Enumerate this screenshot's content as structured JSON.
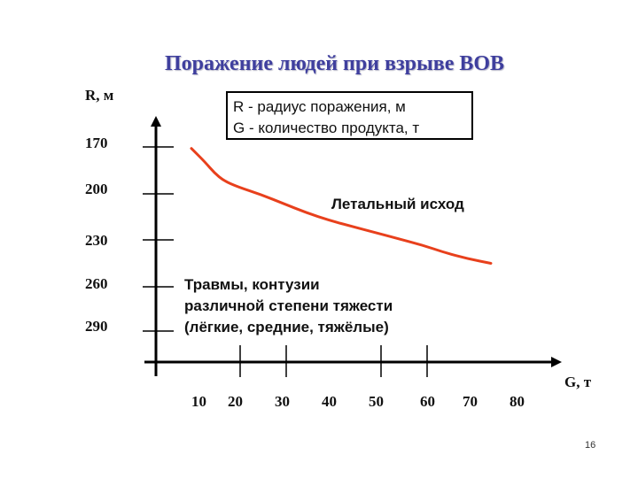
{
  "title": "Поражение людей при взрыве ВОВ",
  "page_number": "16",
  "colors": {
    "title": "#3f3f9e",
    "curve": "#e8401c",
    "axes": "#000000"
  },
  "chart_data": {
    "type": "line",
    "xlabel": "G, т",
    "ylabel": "R, м",
    "x_ticks": [
      "10",
      "20",
      "30",
      "40",
      "50",
      "60",
      "70",
      "80"
    ],
    "y_ticks": [
      "170",
      "200",
      "230",
      "260",
      "290"
    ],
    "legend": [
      "R - радиус поражения, м",
      "G - количество продукта, т"
    ],
    "annotations": {
      "lethal": "Летальный исход",
      "injury": [
        "Травмы, контузии",
        "различной степени тяжести",
        "(лёгкие, средние, тяжёлые)"
      ]
    },
    "grid": false,
    "series": [
      {
        "color": "#e8401c",
        "x": [
          10,
          13,
          15,
          17,
          20,
          25,
          30,
          35,
          40,
          45,
          50,
          55,
          60,
          65,
          70,
          75
        ],
        "y": [
          171,
          180,
          187,
          192,
          196,
          201,
          207,
          213,
          218,
          222,
          226,
          230,
          234,
          239,
          243,
          246
        ]
      }
    ]
  }
}
